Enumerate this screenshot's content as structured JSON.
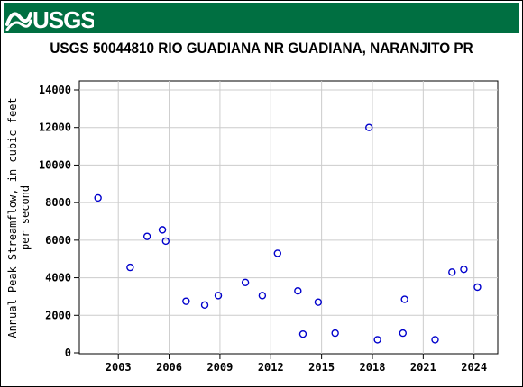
{
  "banner": {
    "logo_text": "USGS",
    "colors": {
      "background": "#006f41",
      "logo": "#ffffff"
    }
  },
  "chart_data": {
    "type": "scatter",
    "title": "USGS 50044810 RIO GUADIANA NR GUADIANA, NARANJITO PR",
    "xlabel": "",
    "ylabel_lines": [
      "Annual Peak Streamflow, in cubic feet",
      "per second"
    ],
    "xlim": [
      2000.7,
      2025.4
    ],
    "ylim": [
      0,
      15000
    ],
    "x_ticks": [
      2003,
      2006,
      2009,
      2012,
      2015,
      2018,
      2021,
      2024
    ],
    "y_ticks": [
      0,
      2000,
      4000,
      6000,
      8000,
      10000,
      12000,
      14000
    ],
    "grid": true,
    "marker": {
      "shape": "circle",
      "color": "#0000cc"
    },
    "points": [
      {
        "x": 2001.8,
        "y": 8250
      },
      {
        "x": 2003.7,
        "y": 4550
      },
      {
        "x": 2004.7,
        "y": 6200
      },
      {
        "x": 2005.6,
        "y": 6550
      },
      {
        "x": 2005.8,
        "y": 5950
      },
      {
        "x": 2007.0,
        "y": 2750
      },
      {
        "x": 2008.1,
        "y": 2550
      },
      {
        "x": 2008.9,
        "y": 3050
      },
      {
        "x": 2010.5,
        "y": 3750
      },
      {
        "x": 2011.5,
        "y": 3050
      },
      {
        "x": 2012.4,
        "y": 5300
      },
      {
        "x": 2013.6,
        "y": 3300
      },
      {
        "x": 2013.9,
        "y": 1000
      },
      {
        "x": 2014.8,
        "y": 2700
      },
      {
        "x": 2015.8,
        "y": 1050
      },
      {
        "x": 2017.8,
        "y": 12000
      },
      {
        "x": 2018.3,
        "y": 700
      },
      {
        "x": 2019.8,
        "y": 1050
      },
      {
        "x": 2019.9,
        "y": 2850
      },
      {
        "x": 2021.7,
        "y": 700
      },
      {
        "x": 2022.7,
        "y": 4300
      },
      {
        "x": 2023.4,
        "y": 4450
      },
      {
        "x": 2024.2,
        "y": 3500
      }
    ]
  }
}
